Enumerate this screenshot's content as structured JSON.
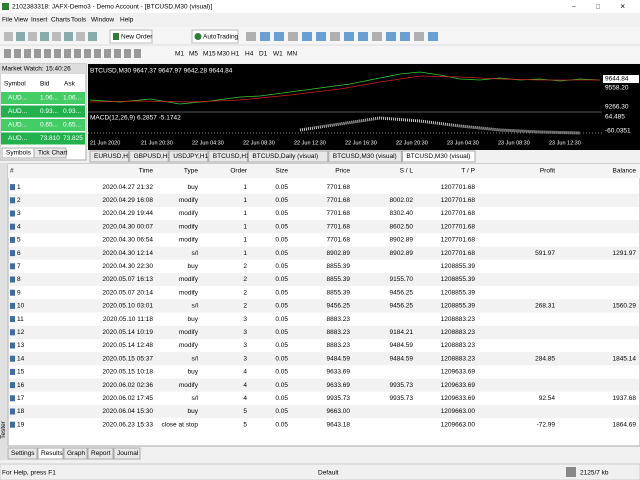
{
  "title_bar": "2102383318: JAFX-Demo3 - Demo Account - [BTCUSD,M30 (visual)]",
  "menu": [
    "File",
    "View",
    "Insert",
    "Charts",
    "Tools",
    "Window",
    "Help"
  ],
  "toolbar": {
    "new_order": "New Order",
    "autotrading": "AutoTrading",
    "timeframes": [
      "M1",
      "M5",
      "M15",
      "M30",
      "H1",
      "H4",
      "D1",
      "W1",
      "MN"
    ]
  },
  "market_watch": {
    "title": "Market Watch: 15:40:26",
    "columns": [
      "Symbol",
      "Bid",
      "Ask"
    ],
    "rows": [
      [
        "AUD...",
        "1.06...",
        "1.06..."
      ],
      [
        "AUD...",
        "0.93...",
        "0.93..."
      ],
      [
        "AUD...",
        "0.65...",
        "0.65..."
      ],
      [
        "AUD...",
        "73.810",
        "73.825"
      ]
    ],
    "tabs": [
      "Symbols",
      "Tick Chart"
    ]
  },
  "chart": {
    "header": "BTCUSD,M30 9647.37 9647.97 9642.28 9644.84",
    "indicator": "MACD(12,26,9) 6.2857 -5.1742",
    "price_labels": [
      "9644.84",
      "9558.20",
      "9266.30",
      "64.485",
      "-60.0351"
    ],
    "time_labels": [
      "21 Jun 2020",
      "21 Jun 20:30",
      "22 Jun 04:30",
      "22 Jun 08:30",
      "22 Jun 12:30",
      "22 Jun 16:30",
      "22 Jun 20:30",
      "23 Jun 04:30",
      "23 Jun 08:30",
      "23 Jun 12:30"
    ],
    "tabs": [
      "EURUSD,H1",
      "GBPUSD,H1",
      "USDJPY,H1",
      "BTCUSD,H1",
      "BTCUSD,Daily (visual)",
      "BTCUSD,M30 (visual)",
      "BTCUSD,M30 (visual)"
    ]
  },
  "results": {
    "columns": [
      "#",
      "Time",
      "Type",
      "Order",
      "Size",
      "Price",
      "S / L",
      "T / P",
      "Profit",
      "Balance"
    ],
    "rows": [
      [
        "1",
        "2020.04.27 21:32",
        "buy",
        "1",
        "0.05",
        "7701.68",
        null,
        "1207701.68",
        null,
        null
      ],
      [
        "2",
        "2020.04.29 16:08",
        "modify",
        "1",
        "0.05",
        "7701.68",
        "8002.02",
        "1207701.68",
        null,
        null
      ],
      [
        "3",
        "2020.04.29 19:44",
        "modify",
        "1",
        "0.05",
        "7701.68",
        "8302.40",
        "1207701.68",
        null,
        null
      ],
      [
        "4",
        "2020.04.30 00:07",
        "modify",
        "1",
        "0.05",
        "7701.68",
        "8602.50",
        "1207701.68",
        null,
        null
      ],
      [
        "5",
        "2020.04.30 06:54",
        "modify",
        "1",
        "0.05",
        "7701.68",
        "8902.89",
        "1207701.68",
        null,
        null
      ],
      [
        "6",
        "2020.04.30 12:14",
        "s/l",
        "1",
        "0.05",
        "8902.89",
        "8902.89",
        "1207701.68",
        "591.97",
        "1291.97"
      ],
      [
        "7",
        "2020.04.30 22:30",
        "buy",
        "2",
        "0.05",
        "8855.39",
        null,
        "1208855.39",
        null,
        null
      ],
      [
        "8",
        "2020.05.07 16:13",
        "modify",
        "2",
        "0.05",
        "8855.39",
        "9155.70",
        "1208855.39",
        null,
        null
      ],
      [
        "9",
        "2020.05.07 20:14",
        "modify",
        "2",
        "0.05",
        "8855.39",
        "9456.25",
        "1208855.39",
        null,
        null
      ],
      [
        "10",
        "2020.05.10 03:01",
        "s/l",
        "2",
        "0.05",
        "9456.25",
        "9456.25",
        "1208855.39",
        "268.31",
        "1560.29"
      ],
      [
        "11",
        "2020.05.10 11:18",
        "buy",
        "3",
        "0.05",
        "8883.23",
        null,
        "1208883.23",
        null,
        null
      ],
      [
        "12",
        "2020.05.14 10:19",
        "modify",
        "3",
        "0.05",
        "8883.23",
        "9184.21",
        "1208883.23",
        null,
        null
      ],
      [
        "13",
        "2020.05.14 12:48",
        "modify",
        "3",
        "0.05",
        "8883.23",
        "9484.59",
        "1208883.23",
        null,
        null
      ],
      [
        "14",
        "2020.05.15 05:37",
        "s/l",
        "3",
        "0.05",
        "9484.59",
        "9484.59",
        "1208883.23",
        "284.85",
        "1845.14"
      ],
      [
        "15",
        "2020.05.15 10:18",
        "buy",
        "4",
        "0.05",
        "9633.69",
        null,
        "1209633.69",
        null,
        null
      ],
      [
        "16",
        "2020.06.02 02:36",
        "modify",
        "4",
        "0.05",
        "9633.69",
        "9935.73",
        "1209633.69",
        null,
        null
      ],
      [
        "17",
        "2020.06.02 17:45",
        "s/l",
        "4",
        "0.05",
        "9935.73",
        "9935.73",
        "1209633.69",
        "92.54",
        "1937.68"
      ],
      [
        "18",
        "2020.06.04 15:30",
        "buy",
        "5",
        "0.05",
        "9663.00",
        null,
        "1209663.00",
        null,
        null
      ],
      [
        "19",
        "2020.06.23 15:33",
        "close at stop",
        "5",
        "0.05",
        "9643.18",
        null,
        "1209663.00",
        "-72.99",
        "1864.69"
      ]
    ]
  },
  "tester": {
    "label": "Tester",
    "tabs": [
      "Settings",
      "Results",
      "Graph",
      "Report",
      "Journal"
    ]
  },
  "status_bar": {
    "help": "For Help, press F1",
    "profile": "Default",
    "traffic": "2125/7 kb"
  }
}
